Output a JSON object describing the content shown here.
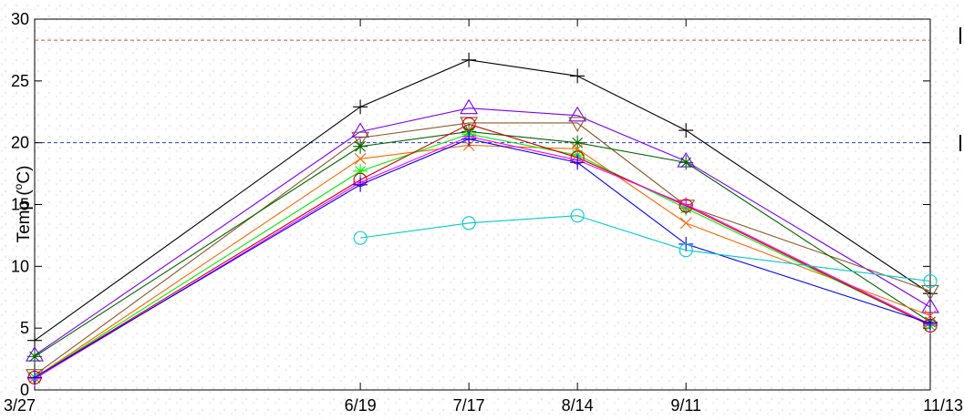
{
  "chart_data": {
    "type": "line",
    "title": "",
    "xlabel": "",
    "ylabel_prefix": "Temp (",
    "ylabel_sup": "o",
    "ylabel_suffix": "C)",
    "categories": [
      "3/27",
      "6/19",
      "7/17",
      "8/14",
      "9/11",
      "11/13"
    ],
    "x_days": [
      86,
      170,
      198,
      226,
      254,
      317
    ],
    "ylim": [
      0,
      30
    ],
    "yticks": [
      "0",
      "5",
      "10",
      "15",
      "20",
      "25",
      "30"
    ],
    "reference_lines": [
      {
        "y": 28.3,
        "color": "#c0504d"
      },
      {
        "y": 20.0,
        "color": "#1f3fbf"
      }
    ],
    "grid": false,
    "legend": "cut off at right edge (not visible)",
    "series": [
      {
        "color": "#000000",
        "marker": "plus",
        "values": [
          4.0,
          22.9,
          26.7,
          25.4,
          21.0,
          7.8
        ]
      },
      {
        "color": "#7a00ff",
        "marker": "triangle",
        "values": [
          2.8,
          20.9,
          22.8,
          22.2,
          18.5,
          6.7
        ]
      },
      {
        "color": "#8b5a2b",
        "marker": "triangle-down",
        "values": [
          1.2,
          20.4,
          21.6,
          21.6,
          14.9,
          8.0
        ]
      },
      {
        "color": "#006400",
        "marker": "star",
        "values": [
          2.7,
          19.7,
          20.9,
          20.0,
          18.4,
          5.5
        ]
      },
      {
        "color": "#ff6600",
        "marker": "x",
        "values": [
          1.0,
          18.7,
          19.8,
          19.5,
          13.5,
          6.0
        ]
      },
      {
        "color": "#00ee00",
        "marker": "star",
        "values": [
          1.0,
          17.7,
          20.7,
          19.0,
          14.7,
          5.2
        ]
      },
      {
        "color": "#cc0000",
        "marker": "circle",
        "values": [
          1.0,
          17.0,
          21.5,
          18.8,
          14.9,
          5.2
        ]
      },
      {
        "color": "#ff00ff",
        "marker": "plus",
        "values": [
          0.9,
          16.8,
          20.5,
          18.6,
          15.0,
          5.3
        ]
      },
      {
        "color": "#0000ff",
        "marker": "plus",
        "values": [
          1.0,
          16.6,
          20.3,
          18.4,
          11.8,
          5.4
        ]
      },
      {
        "color": "#00cccc",
        "marker": "circle",
        "values": [
          null,
          12.3,
          13.5,
          14.1,
          11.3,
          8.8
        ]
      }
    ]
  }
}
